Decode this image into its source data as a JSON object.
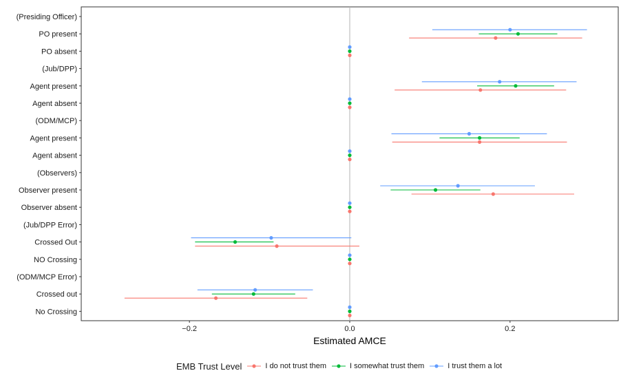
{
  "chart_data": {
    "type": "scatter",
    "subtype": "coefficient-plot",
    "title": "",
    "xlabel": "Estimated AMCE",
    "ylabel": "",
    "xlim": [
      -0.335,
      0.335
    ],
    "xticks": [
      -0.2,
      0.0,
      0.2
    ],
    "xtick_labels": [
      "−0.2",
      "0.0",
      "0.2"
    ],
    "reference_line_x": 0,
    "grid": false,
    "legend_position": "bottom",
    "legend_title": "EMB Trust Level",
    "categories": [
      "(Presiding Officer)",
      "PO present",
      "PO absent",
      "(Jub/DPP)",
      "Agent present",
      "Agent absent",
      "(ODM/MCP)",
      "Agent present",
      "Agent absent",
      "(Observers)",
      "Observer present",
      "Observer absent",
      "(Jub/DPP Error)",
      "Crossed Out",
      "NO Crossing",
      "(ODM/MCP Error)",
      "Crossed out",
      "No Crossing"
    ],
    "series": [
      {
        "name": "I do not trust them",
        "color": "#F8766D",
        "estimates": [
          null,
          0.182,
          0.0,
          null,
          0.163,
          0.0,
          null,
          0.162,
          0.0,
          null,
          0.179,
          0.0,
          null,
          -0.091,
          0.0,
          null,
          -0.167,
          0.0
        ],
        "ci_low": [
          null,
          0.074,
          0.0,
          null,
          0.056,
          0.0,
          null,
          0.053,
          0.0,
          null,
          0.077,
          0.0,
          null,
          -0.193,
          0.0,
          null,
          -0.281,
          0.0
        ],
        "ci_high": [
          null,
          0.29,
          0.0,
          null,
          0.27,
          0.0,
          null,
          0.271,
          0.0,
          null,
          0.28,
          0.0,
          null,
          0.012,
          0.0,
          null,
          -0.053,
          0.0
        ]
      },
      {
        "name": "I somewhat trust them",
        "color": "#00BA38",
        "estimates": [
          null,
          0.21,
          0.0,
          null,
          0.207,
          0.0,
          null,
          0.162,
          0.0,
          null,
          0.107,
          0.0,
          null,
          -0.143,
          0.0,
          null,
          -0.12,
          0.0
        ],
        "ci_low": [
          null,
          0.161,
          0.0,
          null,
          0.159,
          0.0,
          null,
          0.112,
          0.0,
          null,
          0.051,
          0.0,
          null,
          -0.193,
          0.0,
          null,
          -0.172,
          0.0
        ],
        "ci_high": [
          null,
          0.259,
          0.0,
          null,
          0.255,
          0.0,
          null,
          0.212,
          0.0,
          null,
          0.163,
          0.0,
          null,
          -0.095,
          0.0,
          null,
          -0.068,
          0.0
        ]
      },
      {
        "name": "I trust them a lot",
        "color": "#619CFF",
        "estimates": [
          null,
          0.2,
          0.0,
          null,
          0.187,
          0.0,
          null,
          0.149,
          0.0,
          null,
          0.135,
          0.0,
          null,
          -0.098,
          0.0,
          null,
          -0.118,
          0.0
        ],
        "ci_low": [
          null,
          0.103,
          0.0,
          null,
          0.09,
          0.0,
          null,
          0.052,
          0.0,
          null,
          0.038,
          0.0,
          null,
          -0.198,
          0.0,
          null,
          -0.19,
          0.0
        ],
        "ci_high": [
          null,
          0.296,
          0.0,
          null,
          0.283,
          0.0,
          null,
          0.246,
          0.0,
          null,
          0.231,
          0.0,
          null,
          0.002,
          0.0,
          null,
          -0.046,
          0.0
        ]
      }
    ]
  }
}
